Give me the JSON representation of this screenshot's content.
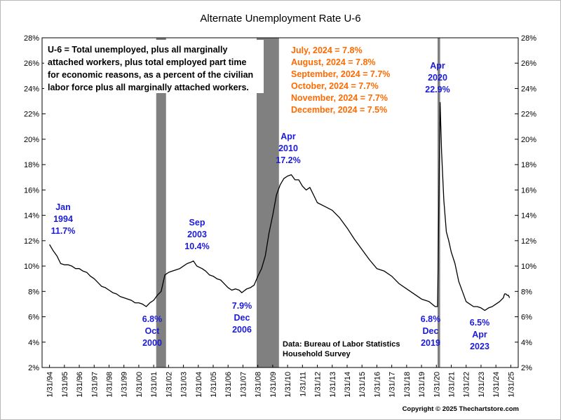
{
  "chart_data": {
    "type": "line",
    "title": "Alternate Unemployment Rate U-6",
    "xlabel": "",
    "ylabel": "",
    "ylim": [
      2,
      28
    ],
    "y_ticks": [
      "2%",
      "4%",
      "6%",
      "8%",
      "10%",
      "12%",
      "14%",
      "16%",
      "18%",
      "20%",
      "22%",
      "24%",
      "26%",
      "28%"
    ],
    "x_ticks": [
      "1/31/94",
      "1/31/95",
      "1/31/96",
      "1/31/97",
      "1/31/98",
      "1/31/99",
      "1/31/00",
      "1/31/01",
      "1/31/02",
      "1/31/03",
      "1/31/04",
      "1/31/05",
      "1/31/06",
      "1/31/07",
      "1/31/08",
      "1/31/09",
      "1/31/10",
      "1/31/11",
      "1/31/12",
      "1/31/13",
      "1/31/14",
      "1/31/15",
      "1/31/16",
      "1/31/17",
      "1/31/18",
      "1/31/19",
      "1/31/20",
      "1/31/21",
      "1/31/22",
      "1/31/23",
      "1/31/24",
      "1/31/25"
    ],
    "recessions": [
      [
        2001.17,
        2001.83
      ],
      [
        2007.92,
        2009.42
      ],
      [
        2020.08,
        2020.25
      ]
    ],
    "line_color": "#000000",
    "recession_color": "#808080",
    "series": [
      {
        "x": [
          1994.0,
          1994.25,
          1994.5,
          1994.75,
          1995.0,
          1995.25,
          1995.5,
          1995.75,
          1996.0,
          1996.25,
          1996.5,
          1996.75,
          1997.0,
          1997.25,
          1997.5,
          1997.75,
          1998.0,
          1998.25,
          1998.5,
          1998.75,
          1999.0,
          1999.25,
          1999.5,
          1999.75,
          2000.0,
          2000.25,
          2000.5,
          2000.75,
          2001.0,
          2001.25,
          2001.5,
          2001.75,
          2002.0,
          2002.25,
          2002.5,
          2002.75,
          2003.0,
          2003.25,
          2003.5,
          2003.67,
          2003.9,
          2004.25,
          2004.5,
          2004.75,
          2005.0,
          2005.25,
          2005.5,
          2005.75,
          2006.0,
          2006.25,
          2006.5,
          2006.75,
          2006.92,
          2007.25,
          2007.5,
          2007.75,
          2008.0,
          2008.25,
          2008.5,
          2008.75,
          2009.0,
          2009.25,
          2009.5,
          2009.75,
          2010.0,
          2010.25,
          2010.5,
          2010.75,
          2011.0,
          2011.25,
          2011.5,
          2011.75,
          2012.0,
          2012.5,
          2013.0,
          2013.5,
          2014.0,
          2014.5,
          2015.0,
          2015.5,
          2016.0,
          2016.5,
          2017.0,
          2017.5,
          2018.0,
          2018.5,
          2019.0,
          2019.5,
          2019.92,
          2020.08,
          2020.25,
          2020.35,
          2020.5,
          2020.67,
          2020.83,
          2021.0,
          2021.25,
          2021.5,
          2021.75,
          2022.0,
          2022.25,
          2022.5,
          2022.75,
          2023.0,
          2023.25,
          2023.5,
          2023.75,
          2024.0,
          2024.25,
          2024.5,
          2024.58,
          2024.67,
          2024.75,
          2024.83,
          2024.92
        ],
        "y": [
          11.7,
          11.2,
          10.8,
          10.2,
          10.1,
          10.1,
          10.0,
          9.8,
          9.8,
          9.6,
          9.5,
          9.2,
          9.0,
          8.7,
          8.4,
          8.3,
          8.1,
          7.9,
          7.8,
          7.6,
          7.5,
          7.4,
          7.3,
          7.1,
          7.1,
          7.0,
          6.8,
          7.1,
          7.3,
          7.7,
          8.0,
          9.3,
          9.5,
          9.6,
          9.7,
          9.8,
          10.0,
          10.2,
          10.3,
          10.4,
          10.0,
          9.8,
          9.6,
          9.3,
          9.2,
          9.0,
          8.9,
          8.6,
          8.3,
          8.1,
          8.2,
          8.1,
          7.9,
          8.2,
          8.3,
          8.5,
          9.2,
          9.8,
          10.8,
          12.6,
          14.0,
          15.6,
          16.4,
          16.9,
          17.1,
          17.2,
          16.8,
          16.8,
          16.3,
          16.0,
          16.2,
          15.6,
          15.0,
          14.7,
          14.4,
          13.8,
          13.0,
          12.1,
          11.3,
          10.5,
          9.8,
          9.6,
          9.2,
          8.6,
          8.2,
          7.8,
          7.4,
          7.2,
          6.8,
          6.8,
          22.9,
          19.0,
          15.2,
          12.7,
          12.0,
          11.1,
          10.2,
          8.8,
          8.0,
          7.2,
          7.0,
          6.8,
          6.8,
          6.7,
          6.5,
          6.7,
          6.8,
          7.0,
          7.2,
          7.5,
          7.8,
          7.8,
          7.7,
          7.7,
          7.5
        ]
      }
    ],
    "annotations": [
      {
        "lines": [
          "Jan",
          "1994",
          "11.7%"
        ]
      },
      {
        "lines": [
          "Sep",
          "2003",
          "10.4%"
        ]
      },
      {
        "lines": [
          "Apr",
          "2010",
          "17.2%"
        ]
      },
      {
        "lines": [
          "Apr",
          "2020",
          "22.9%"
        ]
      },
      {
        "lines": [
          "6.8%",
          "Oct",
          "2000"
        ]
      },
      {
        "lines": [
          "7.9%",
          "Dec",
          "2006"
        ]
      },
      {
        "lines": [
          "6.8%",
          "Dec",
          "2019"
        ]
      },
      {
        "lines": [
          "6.5%",
          "Apr",
          "2023"
        ]
      }
    ],
    "definition": [
      "U-6 = Total unemployed, plus all marginally",
      "attached workers, plus total employed part time",
      "for economic reasons, as a percent of the civilian",
      "labor force plus all marginally attached workers."
    ],
    "recent_values": [
      "July, 2024 = 7.8%",
      "August, 2024 = 7.8%",
      "September, 2024 = 7.7%",
      "October, 2024 = 7.7%",
      "November, 2024 = 7.7%",
      "December, 2024 = 7.5%"
    ],
    "source": [
      "Data:  Bureau of Labor Statistics",
      "Household Survey"
    ],
    "copyright": "Copyright © 2025 Thechartstore.com",
    "grid": false
  }
}
